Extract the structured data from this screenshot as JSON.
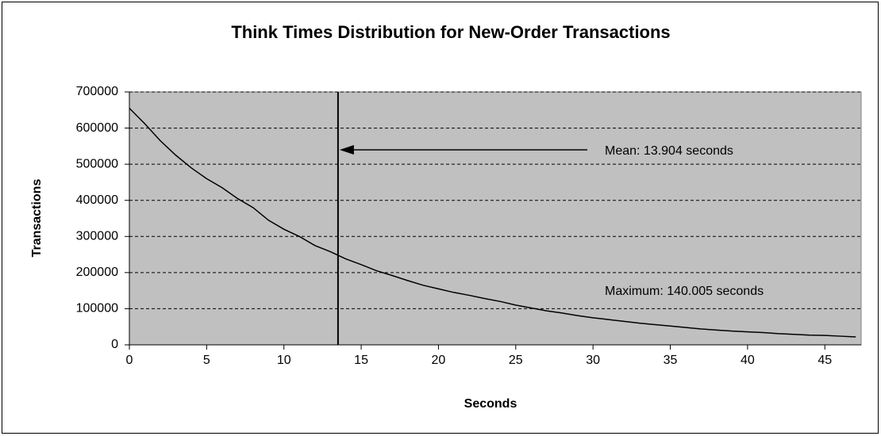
{
  "chart_data": {
    "type": "line",
    "title": "Think Times Distribution for New-Order Transactions",
    "x_label": "Seconds",
    "y_label": "Transactions",
    "x": [
      0,
      1,
      2,
      3,
      4,
      5,
      6,
      7,
      8,
      9,
      10,
      11,
      12,
      13,
      14,
      15,
      16,
      17,
      18,
      19,
      20,
      21,
      22,
      23,
      24,
      25,
      26,
      27,
      28,
      29,
      30,
      31,
      32,
      33,
      34,
      35,
      36,
      37,
      38,
      39,
      40,
      41,
      42,
      43,
      44,
      45,
      46,
      47
    ],
    "series": [
      {
        "name": "Transactions",
        "color": "#000000",
        "values": [
          655000,
          612000,
          565000,
          525000,
          490000,
          460000,
          435000,
          405000,
          380000,
          345000,
          320000,
          300000,
          275000,
          258000,
          238000,
          222000,
          205000,
          192000,
          178000,
          165000,
          155000,
          145000,
          137000,
          128000,
          120000,
          110000,
          102000,
          94000,
          88000,
          81000,
          75000,
          70000,
          65000,
          60000,
          56000,
          52000,
          48000,
          44000,
          41000,
          38000,
          36000,
          34000,
          31000,
          29000,
          27000,
          26000,
          24000,
          22000
        ]
      }
    ],
    "xlim": [
      0,
      47.35
    ],
    "xticks": [
      0,
      5,
      10,
      15,
      20,
      25,
      30,
      35,
      40,
      45
    ],
    "ylim": [
      0,
      700000
    ],
    "yticks": [
      0,
      100000,
      200000,
      300000,
      400000,
      500000,
      600000,
      700000
    ],
    "grid": true,
    "plot_background": "#c0c0c0",
    "mean_line_x": 13.5,
    "annotations": [
      "Mean: 13.904 seconds",
      "Maximum: 140.005 seconds"
    ]
  }
}
